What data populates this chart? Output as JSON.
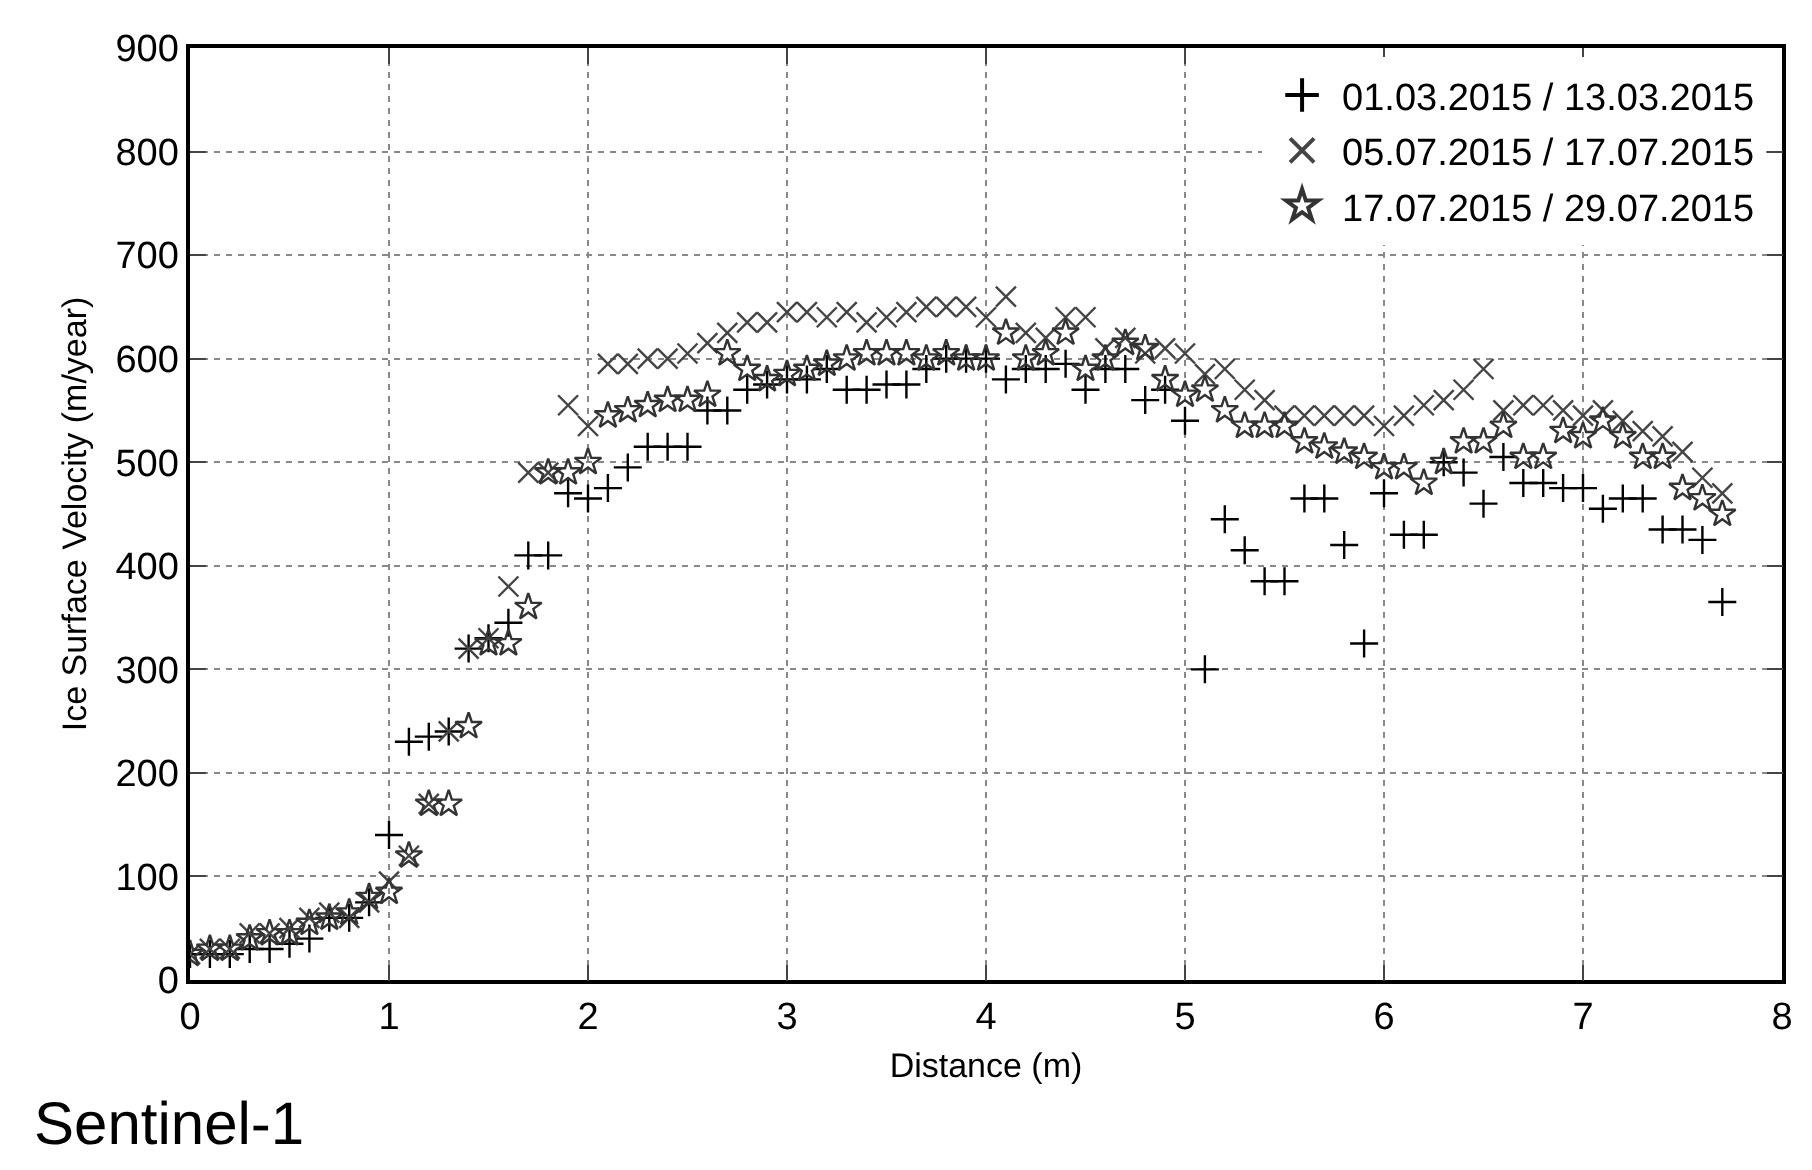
{
  "chart_data": {
    "type": "scatter",
    "xlabel": "Distance (m)",
    "ylabel": "Ice Surface Velocity (m/year)",
    "x": [
      0,
      0.1,
      0.2,
      0.3,
      0.4,
      0.5,
      0.6,
      0.7,
      0.8,
      0.9,
      1.0,
      1.1,
      1.2,
      1.3,
      1.4,
      1.5,
      1.6,
      1.7,
      1.8,
      1.9,
      2.0,
      2.1,
      2.2,
      2.3,
      2.4,
      2.5,
      2.6,
      2.7,
      2.8,
      2.9,
      3.0,
      3.1,
      3.2,
      3.3,
      3.4,
      3.5,
      3.6,
      3.7,
      3.8,
      3.9,
      4.0,
      4.1,
      4.2,
      4.3,
      4.4,
      4.5,
      4.6,
      4.7,
      4.8,
      4.9,
      5.0,
      5.1,
      5.2,
      5.3,
      5.4,
      5.5,
      5.6,
      5.7,
      5.8,
      5.9,
      6.0,
      6.1,
      6.2,
      6.3,
      6.4,
      6.5,
      6.6,
      6.7,
      6.8,
      6.9,
      7.0,
      7.1,
      7.2,
      7.3,
      7.4,
      7.5,
      7.6,
      7.7
    ],
    "series": [
      {
        "name": "01.03.2015 / 13.03.2015",
        "color": "#000000",
        "marker": "cross",
        "values": [
          25,
          25,
          25,
          30,
          30,
          35,
          40,
          60,
          60,
          75,
          140,
          230,
          235,
          240,
          320,
          330,
          345,
          410,
          410,
          470,
          465,
          475,
          495,
          515,
          515,
          515,
          550,
          550,
          570,
          575,
          580,
          580,
          590,
          570,
          570,
          575,
          575,
          590,
          600,
          600,
          600,
          580,
          590,
          590,
          595,
          570,
          590,
          590,
          560,
          570,
          540,
          300,
          445,
          415,
          385,
          385,
          465,
          465,
          420,
          325,
          470,
          430,
          430,
          500,
          490,
          460,
          505,
          480,
          480,
          475,
          475,
          455,
          465,
          465,
          435,
          435,
          425,
          365
        ]
      },
      {
        "name": "05.07.2015 / 17.07.2015",
        "color": "#444444",
        "marker": "x",
        "values": [
          25,
          30,
          30,
          45,
          45,
          50,
          60,
          65,
          60,
          75,
          95,
          120,
          170,
          240,
          320,
          330,
          380,
          490,
          490,
          555,
          535,
          595,
          595,
          600,
          600,
          605,
          615,
          625,
          635,
          635,
          645,
          645,
          640,
          645,
          635,
          640,
          645,
          650,
          650,
          650,
          640,
          660,
          625,
          620,
          640,
          640,
          610,
          620,
          605,
          610,
          605,
          585,
          590,
          570,
          560,
          545,
          545,
          545,
          545,
          545,
          535,
          545,
          555,
          560,
          570,
          590,
          550,
          555,
          555,
          550,
          545,
          550,
          540,
          530,
          525,
          510,
          485,
          470
        ]
      },
      {
        "name": "17.07.2015 / 29.07.2015",
        "color": "#333333",
        "marker": "star",
        "values": [
          25,
          30,
          30,
          40,
          45,
          45,
          55,
          60,
          65,
          80,
          85,
          120,
          170,
          170,
          245,
          325,
          325,
          360,
          490,
          490,
          500,
          545,
          550,
          555,
          560,
          560,
          565,
          605,
          590,
          580,
          585,
          590,
          595,
          600,
          605,
          605,
          605,
          600,
          605,
          600,
          600,
          625,
          600,
          605,
          625,
          590,
          600,
          615,
          610,
          580,
          565,
          570,
          550,
          535,
          535,
          535,
          520,
          515,
          510,
          505,
          495,
          495,
          480,
          500,
          520,
          520,
          535,
          505,
          505,
          530,
          525,
          540,
          525,
          505,
          505,
          475,
          465,
          450
        ]
      }
    ],
    "xlim": [
      0,
      8
    ],
    "xticks": [
      0,
      1,
      2,
      3,
      4,
      5,
      6,
      7,
      8
    ],
    "ylim": [
      0,
      900
    ],
    "yticks": [
      0,
      100,
      200,
      300,
      400,
      500,
      600,
      700,
      800,
      900
    ],
    "grid": true,
    "legend": "top right",
    "annotations": [
      "Sentinel-1"
    ]
  }
}
